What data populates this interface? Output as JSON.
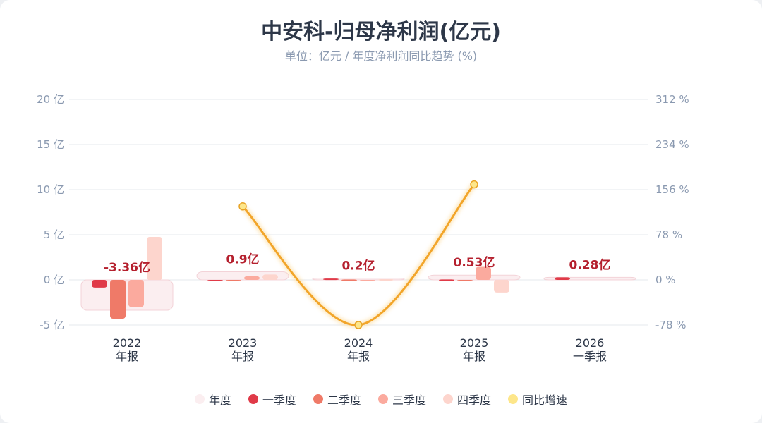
{
  "chart_data": {
    "type": "bar",
    "title": "中安科-归母净利润(亿元)",
    "subtitle": "单位：亿元 / 年度净利润同比趋势 (%)",
    "categories": [
      [
        "2022",
        "年报"
      ],
      [
        "2023",
        "年报"
      ],
      [
        "2024",
        "年报"
      ],
      [
        "2025",
        "年报"
      ],
      [
        "2026",
        "一季报"
      ]
    ],
    "left_axis": {
      "ticks": [
        "20 亿",
        "15 亿",
        "10 亿",
        "5 亿",
        "0 亿",
        "-5 亿"
      ],
      "values": [
        20,
        15,
        10,
        5,
        0,
        -5
      ],
      "ylim": [
        -5,
        20
      ]
    },
    "right_axis": {
      "ticks": [
        "312 %",
        "234 %",
        "156 %",
        "78 %",
        "0 %",
        "-78 %"
      ],
      "values": [
        312,
        234,
        156,
        78,
        0,
        -78
      ],
      "ylim": [
        -78,
        312
      ]
    },
    "grid": true,
    "legend_placement": "bottom",
    "series": [
      {
        "name": "年度",
        "type": "bar",
        "color": "#fbeef0",
        "values": [
          -3.36,
          0.9,
          0.2,
          0.53,
          0.28
        ]
      },
      {
        "name": "一季度",
        "type": "bar",
        "color": "#e03a48",
        "values": [
          -0.85,
          -0.08,
          0.15,
          0.05,
          0.28
        ]
      },
      {
        "name": "二季度",
        "type": "bar",
        "color": "#ef7a68",
        "values": [
          -4.3,
          -0.02,
          0.05,
          -0.03,
          null
        ]
      },
      {
        "name": "三季度",
        "type": "bar",
        "color": "#fbaa9e",
        "values": [
          -3.0,
          0.4,
          -0.08,
          1.45,
          null
        ]
      },
      {
        "name": "四季度",
        "type": "bar",
        "color": "#fdd5cd",
        "values": [
          4.77,
          0.6,
          0.08,
          -1.4,
          null
        ]
      },
      {
        "name": "同比增速",
        "type": "line",
        "color": "#f2a52a",
        "marker_color": "#fde68a",
        "values": [
          null,
          127,
          -78,
          165,
          null
        ]
      }
    ],
    "data_labels": [
      "-3.36亿",
      "0.9亿",
      "0.2亿",
      "0.53亿",
      "0.28亿"
    ],
    "label_color": "#b5202e"
  }
}
